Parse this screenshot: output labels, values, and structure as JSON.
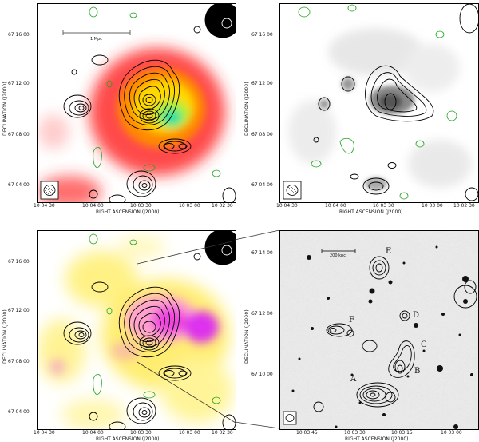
{
  "figure": {
    "axes": {
      "ra_label": "RIGHT ASCENSION  (J2000)",
      "dec_label": "DECLINATION  (J2000)"
    },
    "top_left": {
      "scale_label": "1 Mpc",
      "y_ticks": [
        "67 16 00",
        "67 12 00",
        "67 08 00",
        "67 04 00"
      ],
      "x_ticks": [
        "10 04 30",
        "10 04 00",
        "10 03 30",
        "10 03 00",
        "10 02 30"
      ]
    },
    "top_right": {
      "y_ticks": [
        "67 16 00",
        "67 12 00",
        "67 08 00",
        "67 04 00"
      ],
      "x_ticks": [
        "10 04 30",
        "10 04 00",
        "10 03 30",
        "10 03 00",
        "10 02 30"
      ]
    },
    "bottom_left": {
      "y_ticks": [
        "67 16 00",
        "67 12 00",
        "67 08 00",
        "67 04 00"
      ],
      "x_ticks": [
        "10 04 30",
        "10 04 00",
        "10 03 30",
        "10 03 00",
        "10 02 30"
      ]
    },
    "bottom_right": {
      "scale_label": "200 kpc",
      "y_ticks": [
        "67 14 00",
        "67 12 00",
        "67 10 00"
      ],
      "x_ticks": [
        "10 03 45",
        "10 03 30",
        "10 03 15",
        "10 03 00"
      ],
      "source_labels": [
        "A",
        "B",
        "C",
        "D",
        "E",
        "F"
      ]
    }
  }
}
